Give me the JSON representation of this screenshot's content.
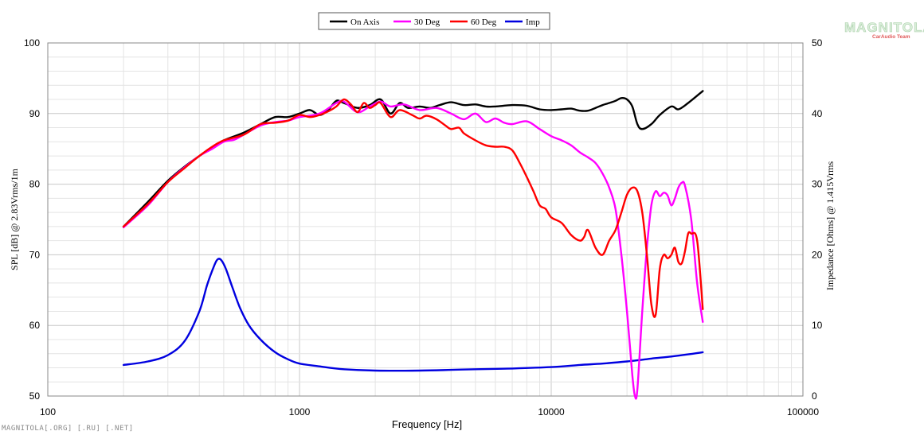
{
  "chart_data": {
    "type": "line",
    "xlabel": "Frequency [Hz]",
    "ylabel": "SPL [dB] @ 2.83Vrms/1m",
    "y2label": "Impedance [Ohms] @ 1.415Vrms",
    "xscale": "log",
    "xlim": [
      100,
      100000
    ],
    "ylim": [
      50,
      100
    ],
    "y2lim": [
      0,
      50
    ],
    "x_ticks": [
      "100",
      "1000",
      "10000",
      "100000"
    ],
    "y_ticks": [
      "50",
      "60",
      "70",
      "80",
      "90",
      "100"
    ],
    "y2_ticks": [
      "0",
      "10",
      "20",
      "30",
      "40",
      "50"
    ],
    "grid": true,
    "legend_position": "top-center",
    "series": [
      {
        "name": "On Axis",
        "color": "#000000",
        "axis": "left",
        "points": [
          [
            200,
            74
          ],
          [
            250,
            77.5
          ],
          [
            300,
            80.5
          ],
          [
            350,
            82.5
          ],
          [
            400,
            84
          ],
          [
            450,
            85.2
          ],
          [
            500,
            86.2
          ],
          [
            600,
            87.3
          ],
          [
            700,
            88.5
          ],
          [
            800,
            89.5
          ],
          [
            900,
            89.5
          ],
          [
            1000,
            90
          ],
          [
            1100,
            90.5
          ],
          [
            1200,
            89.8
          ],
          [
            1300,
            90.5
          ],
          [
            1400,
            91.8
          ],
          [
            1500,
            91.5
          ],
          [
            1700,
            90.8
          ],
          [
            1900,
            91.2
          ],
          [
            2100,
            92
          ],
          [
            2300,
            90
          ],
          [
            2500,
            91.5
          ],
          [
            2700,
            90.8
          ],
          [
            3000,
            91
          ],
          [
            3300,
            90.8
          ],
          [
            3600,
            91.2
          ],
          [
            4000,
            91.6
          ],
          [
            4500,
            91.2
          ],
          [
            5000,
            91.3
          ],
          [
            5500,
            91
          ],
          [
            6000,
            91
          ],
          [
            7000,
            91.2
          ],
          [
            8000,
            91.1
          ],
          [
            9000,
            90.6
          ],
          [
            10000,
            90.5
          ],
          [
            11000,
            90.6
          ],
          [
            12000,
            90.7
          ],
          [
            13000,
            90.4
          ],
          [
            14000,
            90.4
          ],
          [
            15000,
            90.8
          ],
          [
            16000,
            91.2
          ],
          [
            17000,
            91.5
          ],
          [
            18000,
            91.8
          ],
          [
            19000,
            92.2
          ],
          [
            20000,
            92
          ],
          [
            21000,
            91
          ],
          [
            22000,
            88.5
          ],
          [
            23000,
            87.8
          ],
          [
            25000,
            88.5
          ],
          [
            27000,
            89.8
          ],
          [
            30000,
            91
          ],
          [
            32000,
            90.6
          ],
          [
            35000,
            91.5
          ],
          [
            40000,
            93.2
          ]
        ]
      },
      {
        "name": "30 Deg",
        "color": "#ff00ff",
        "axis": "left",
        "points": [
          [
            200,
            73.9
          ],
          [
            250,
            77
          ],
          [
            300,
            80.3
          ],
          [
            350,
            82.4
          ],
          [
            400,
            84
          ],
          [
            450,
            85
          ],
          [
            500,
            86
          ],
          [
            550,
            86.3
          ],
          [
            600,
            87
          ],
          [
            700,
            88.3
          ],
          [
            800,
            88.8
          ],
          [
            900,
            89
          ],
          [
            1000,
            89.5
          ],
          [
            1200,
            90
          ],
          [
            1400,
            91.5
          ],
          [
            1500,
            91.7
          ],
          [
            1700,
            90.2
          ],
          [
            1900,
            91
          ],
          [
            2100,
            91.7
          ],
          [
            2300,
            91
          ],
          [
            2600,
            91.3
          ],
          [
            3000,
            90.5
          ],
          [
            3500,
            90.8
          ],
          [
            4000,
            90
          ],
          [
            4500,
            89.2
          ],
          [
            5000,
            90
          ],
          [
            5500,
            88.8
          ],
          [
            6000,
            89.3
          ],
          [
            6500,
            88.7
          ],
          [
            7000,
            88.5
          ],
          [
            8000,
            88.9
          ],
          [
            9000,
            87.8
          ],
          [
            10000,
            86.8
          ],
          [
            11000,
            86.2
          ],
          [
            12000,
            85.5
          ],
          [
            13000,
            84.5
          ],
          [
            14000,
            83.8
          ],
          [
            15000,
            83
          ],
          [
            16000,
            81.5
          ],
          [
            17000,
            79.5
          ],
          [
            18000,
            76.5
          ],
          [
            19000,
            70
          ],
          [
            20000,
            62
          ],
          [
            21000,
            53
          ],
          [
            21500,
            50
          ],
          [
            22000,
            51
          ],
          [
            23000,
            62
          ],
          [
            24000,
            71
          ],
          [
            25000,
            77
          ],
          [
            26000,
            79
          ],
          [
            27000,
            78.3
          ],
          [
            28000,
            78.8
          ],
          [
            29000,
            78.4
          ],
          [
            30000,
            77
          ],
          [
            31000,
            78
          ],
          [
            32000,
            79.5
          ],
          [
            33000,
            80.2
          ],
          [
            34000,
            79.8
          ],
          [
            36000,
            75
          ],
          [
            38000,
            66
          ],
          [
            40000,
            60.5
          ]
        ]
      },
      {
        "name": "60 Deg",
        "color": "#ff0000",
        "axis": "left",
        "points": [
          [
            200,
            74
          ],
          [
            250,
            77.2
          ],
          [
            300,
            80.3
          ],
          [
            350,
            82.3
          ],
          [
            400,
            84
          ],
          [
            450,
            85.3
          ],
          [
            500,
            86.2
          ],
          [
            600,
            87
          ],
          [
            700,
            88.5
          ],
          [
            800,
            88.7
          ],
          [
            900,
            89
          ],
          [
            1000,
            89.8
          ],
          [
            1100,
            89.5
          ],
          [
            1200,
            89.8
          ],
          [
            1300,
            90.3
          ],
          [
            1400,
            91
          ],
          [
            1500,
            92
          ],
          [
            1600,
            91.3
          ],
          [
            1700,
            90.2
          ],
          [
            1800,
            91.5
          ],
          [
            1900,
            90.8
          ],
          [
            2000,
            91.2
          ],
          [
            2100,
            91.5
          ],
          [
            2300,
            89.5
          ],
          [
            2500,
            90.5
          ],
          [
            2800,
            89.8
          ],
          [
            3000,
            89.3
          ],
          [
            3200,
            89.7
          ],
          [
            3500,
            89.2
          ],
          [
            3800,
            88.3
          ],
          [
            4000,
            87.8
          ],
          [
            4300,
            88
          ],
          [
            4500,
            87.2
          ],
          [
            5000,
            86.2
          ],
          [
            5500,
            85.5
          ],
          [
            6000,
            85.3
          ],
          [
            6500,
            85.3
          ],
          [
            7000,
            84.8
          ],
          [
            7500,
            83
          ],
          [
            8000,
            81
          ],
          [
            8500,
            79
          ],
          [
            9000,
            77
          ],
          [
            9500,
            76.5
          ],
          [
            10000,
            75.3
          ],
          [
            11000,
            74.5
          ],
          [
            12000,
            72.8
          ],
          [
            13000,
            72
          ],
          [
            13500,
            72.5
          ],
          [
            14000,
            73.5
          ],
          [
            15000,
            71
          ],
          [
            16000,
            70
          ],
          [
            17000,
            72
          ],
          [
            18000,
            73.5
          ],
          [
            19000,
            76
          ],
          [
            20000,
            78.5
          ],
          [
            21000,
            79.5
          ],
          [
            22000,
            79
          ],
          [
            23000,
            76
          ],
          [
            24000,
            70
          ],
          [
            25000,
            63
          ],
          [
            26000,
            61.5
          ],
          [
            27000,
            68
          ],
          [
            28000,
            70
          ],
          [
            29000,
            69.5
          ],
          [
            30000,
            70
          ],
          [
            31000,
            71
          ],
          [
            32000,
            69
          ],
          [
            33000,
            68.8
          ],
          [
            34000,
            70.5
          ],
          [
            35000,
            73
          ],
          [
            36000,
            73
          ],
          [
            38000,
            72
          ],
          [
            40000,
            62.3
          ]
        ]
      },
      {
        "name": "Imp",
        "color": "#0000e0",
        "axis": "right",
        "points": [
          [
            200,
            4.4
          ],
          [
            250,
            4.9
          ],
          [
            300,
            5.8
          ],
          [
            350,
            7.8
          ],
          [
            400,
            12
          ],
          [
            430,
            15.8
          ],
          [
            460,
            18.6
          ],
          [
            475,
            19.4
          ],
          [
            490,
            19.2
          ],
          [
            510,
            18
          ],
          [
            540,
            15.5
          ],
          [
            580,
            12.5
          ],
          [
            630,
            10
          ],
          [
            700,
            8
          ],
          [
            800,
            6.2
          ],
          [
            900,
            5.2
          ],
          [
            1000,
            4.6
          ],
          [
            1200,
            4.2
          ],
          [
            1500,
            3.8
          ],
          [
            2000,
            3.6
          ],
          [
            3000,
            3.6
          ],
          [
            4000,
            3.7
          ],
          [
            5000,
            3.8
          ],
          [
            7000,
            3.9
          ],
          [
            10000,
            4.1
          ],
          [
            13000,
            4.4
          ],
          [
            16000,
            4.6
          ],
          [
            20000,
            4.9
          ],
          [
            25000,
            5.3
          ],
          [
            30000,
            5.6
          ],
          [
            35000,
            5.9
          ],
          [
            40000,
            6.2
          ]
        ]
      }
    ]
  },
  "logo": {
    "word": "MAGNITOLA",
    "sub": "CarAudio Team"
  },
  "watermark": "MAGNITOLA[.ORG] [.RU] [.NET]"
}
